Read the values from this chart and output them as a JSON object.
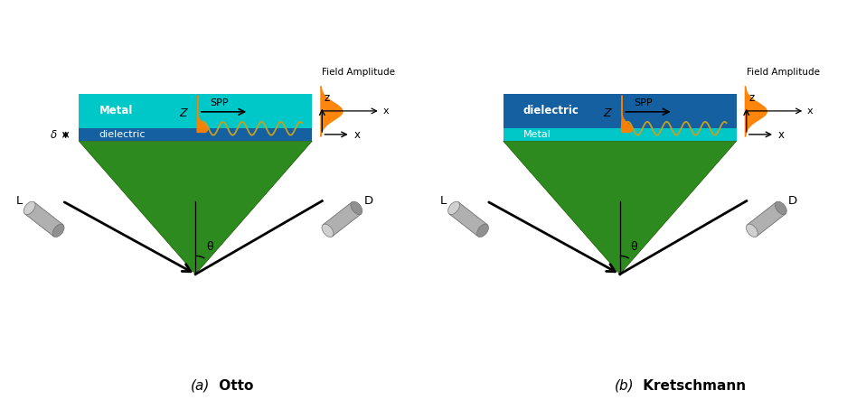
{
  "fig_width": 9.58,
  "fig_height": 4.43,
  "bg_color": "#ffffff",
  "prism_color": "#2d8a1e",
  "prism_edge_color": "#1a5a00",
  "metal_color": "#00c8c8",
  "dielectric_color": "#1560a0",
  "wave_color": "#c8a020",
  "field_color": "#ff8000",
  "spp_label": "SPP",
  "field_amp_label": "Field Amplitude",
  "theta_label": "θ",
  "z_label": "Z",
  "L_label": "L",
  "D_label": "D",
  "metal_label": "Metal",
  "dielectric_label": "dielectric",
  "z_axis": "z",
  "x_axis": "x",
  "caption_a_italic": "(a)",
  "caption_a_bold": "Otto",
  "caption_b_italic": "(b)",
  "caption_b_bold": "Kretschmann"
}
